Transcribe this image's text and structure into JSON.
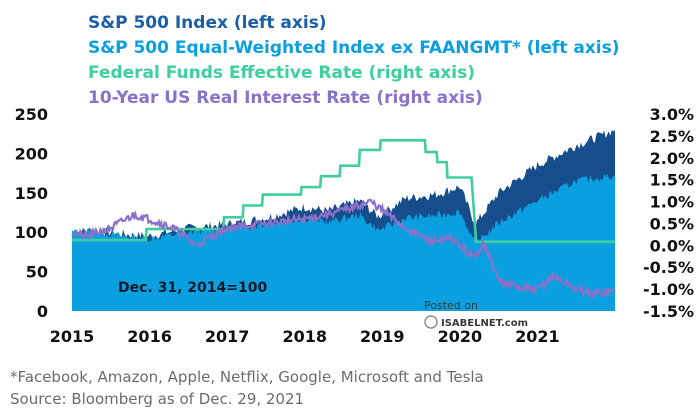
{
  "colors": {
    "sp500": "#1b5fa8",
    "sp500_dark": "#164d8c",
    "equal_weight": "#0aa0e0",
    "fed_funds": "#3fcf9f",
    "real_rate": "#8a72c8"
  },
  "chart_data": {
    "type": "area",
    "x_ticks": [
      "2015",
      "2016",
      "2017",
      "2018",
      "2019",
      "2020",
      "2021"
    ],
    "left_axis": {
      "ticks": [
        "0",
        "50",
        "100",
        "150",
        "200",
        "250"
      ],
      "ylim": [
        0,
        250
      ]
    },
    "right_axis": {
      "ticks": [
        "-1.5%",
        "-1.0%",
        "-0.5%",
        "0.0%",
        "0.5%",
        "1.0%",
        "1.5%",
        "2.0%",
        "2.5%",
        "3.0%"
      ],
      "ylim": [
        -1.5,
        3.0
      ]
    },
    "annotation": "Dec. 31, 2014=100",
    "series": [
      {
        "name": "S&P 500 Index (left axis)",
        "axis": "left",
        "x": [
          2015.0,
          2015.3,
          2015.6,
          2016.0,
          2016.5,
          2017.0,
          2017.5,
          2018.0,
          2018.3,
          2018.7,
          2018.95,
          2019.3,
          2019.7,
          2020.0,
          2020.2,
          2020.5,
          2021.0,
          2021.5,
          2022.0
        ],
        "values": [
          100,
          103,
          98,
          95,
          105,
          110,
          118,
          132,
          127,
          140,
          120,
          143,
          148,
          158,
          110,
          150,
          185,
          210,
          230
        ]
      },
      {
        "name": "S&P 500 Equal-Weighted Index ex FAANGMT* (left axis)",
        "axis": "left",
        "x": [
          2015.0,
          2015.3,
          2015.6,
          2016.0,
          2016.5,
          2017.0,
          2017.5,
          2018.0,
          2018.3,
          2018.7,
          2018.95,
          2019.3,
          2019.7,
          2020.0,
          2020.2,
          2020.5,
          2021.0,
          2021.5,
          2022.0
        ],
        "values": [
          100,
          102,
          95,
          92,
          100,
          105,
          110,
          118,
          113,
          122,
          102,
          118,
          121,
          126,
          85,
          112,
          140,
          165,
          172
        ]
      },
      {
        "name": "Federal Funds Effective Rate (right axis)",
        "axis": "right",
        "x": [
          2015.0,
          2015.95,
          2015.96,
          2016.95,
          2016.96,
          2017.2,
          2017.21,
          2017.45,
          2017.46,
          2017.95,
          2017.96,
          2018.2,
          2018.21,
          2018.45,
          2018.46,
          2018.7,
          2018.71,
          2018.97,
          2018.98,
          2019.55,
          2019.56,
          2019.7,
          2019.71,
          2019.83,
          2019.84,
          2020.15,
          2020.21,
          2022.0
        ],
        "values": [
          0.12,
          0.12,
          0.37,
          0.37,
          0.64,
          0.64,
          0.91,
          0.91,
          1.16,
          1.16,
          1.33,
          1.33,
          1.58,
          1.58,
          1.82,
          1.82,
          2.18,
          2.18,
          2.4,
          2.4,
          2.13,
          2.13,
          1.9,
          1.9,
          1.55,
          1.55,
          0.08,
          0.08
        ]
      },
      {
        "name": "10-Year US Real Interest Rate (right axis)",
        "axis": "right",
        "x": [
          2015.0,
          2015.2,
          2015.5,
          2015.8,
          2016.0,
          2016.3,
          2016.6,
          2016.8,
          2017.0,
          2017.5,
          2018.0,
          2018.5,
          2018.85,
          2019.0,
          2019.3,
          2019.6,
          2019.9,
          2020.0,
          2020.2,
          2020.3,
          2020.5,
          2020.8,
          2021.0,
          2021.2,
          2021.5,
          2021.7,
          2022.0
        ],
        "values": [
          0.3,
          0.2,
          0.4,
          0.7,
          0.6,
          0.4,
          0.0,
          0.2,
          0.4,
          0.5,
          0.6,
          0.8,
          1.0,
          0.8,
          0.4,
          0.1,
          0.15,
          0.0,
          -0.3,
          0.1,
          -0.8,
          -1.0,
          -1.0,
          -0.7,
          -1.0,
          -1.1,
          -1.05
        ]
      }
    ],
    "footnotes": [
      "*Facebook, Amazon, Apple, Netflix, Google, Microsoft and Tesla",
      "Source: Bloomberg as of Dec. 29, 2021"
    ],
    "watermark": [
      "Posted on",
      "ISABELNET.com"
    ]
  }
}
